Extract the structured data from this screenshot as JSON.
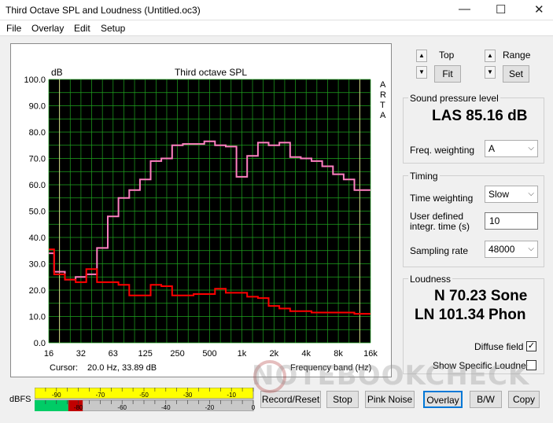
{
  "window": {
    "title": "Third Octave SPL and Loudness (Untitled.oc3)",
    "controls": {
      "minimize": "—",
      "maximize": "☐",
      "close": "✕"
    }
  },
  "menu": {
    "file": "File",
    "overlay": "Overlay",
    "edit": "Edit",
    "setup": "Setup"
  },
  "plot": {
    "cursor_label": "Cursor:",
    "cursor_value": "20.0 Hz, 33.89 dB",
    "arta": [
      "A",
      "R",
      "T",
      "A"
    ]
  },
  "chart_data": {
    "type": "line",
    "title": "Third octave SPL",
    "ylabel": "dB",
    "xlabel": "Frequency band (Hz)",
    "ylim": [
      0,
      100
    ],
    "y_ticks": [
      "0.0",
      "10.0",
      "20.0",
      "30.0",
      "40.0",
      "50.0",
      "60.0",
      "70.0",
      "80.0",
      "90.0",
      "100.0"
    ],
    "x_tick_labels": [
      "16",
      "32",
      "63",
      "125",
      "250",
      "500",
      "1k",
      "2k",
      "4k",
      "8k",
      "16k"
    ],
    "x_band_index_range": [
      0,
      30
    ],
    "grid": true,
    "background": "#000000",
    "grid_color": "#1fa51f",
    "series": [
      {
        "color": "#ff80c0",
        "values": [
          34,
          27,
          24,
          25,
          26,
          36,
          48,
          55,
          58,
          62,
          69,
          70,
          75,
          75.5,
          75.5,
          76.5,
          75,
          74.5,
          63,
          71,
          76,
          75,
          76,
          70.5,
          70,
          69,
          67,
          64,
          62,
          58,
          58
        ]
      },
      {
        "color": "#ff0000",
        "values": [
          35.5,
          26,
          24,
          23,
          28,
          23,
          23,
          22,
          18,
          18,
          22,
          21.5,
          18,
          18,
          18.5,
          18.5,
          20.5,
          19,
          19,
          17.5,
          17,
          14,
          13,
          12,
          12,
          11.5,
          11.5,
          11.5,
          11.5,
          11,
          11
        ]
      }
    ]
  },
  "panel": {
    "top_label": "Top",
    "range_label": "Range",
    "fit_button": "Fit",
    "set_button": "Set",
    "up_arrow": "▲",
    "down_arrow": "▼",
    "spl": {
      "group_label": "Sound pressure level",
      "value": "LAS 85.16 dB",
      "freq_weighting_label": "Freq. weighting",
      "freq_weighting_value": "A"
    },
    "timing": {
      "group_label": "Timing",
      "time_weighting_label": "Time weighting",
      "time_weighting_value": "Slow",
      "integr_label_1": "User defined",
      "integr_label_2": "integr. time (s)",
      "integr_value": "10",
      "sampling_label": "Sampling rate",
      "sampling_value": "48000"
    },
    "loudness": {
      "group_label": "Loudness",
      "sone": "N 70.23 Sone",
      "phon": "LN 101.34 Phon",
      "diffuse_label": "Diffuse field",
      "diffuse_checked": "✓",
      "specific_label": "Show Specific Loudness"
    }
  },
  "meter": {
    "label": "dBFS",
    "scale_top": [
      "-90",
      "-70",
      "-50",
      "-30",
      "-10"
    ],
    "scale_bottom": [
      "-80",
      "-60",
      "-40",
      "-20",
      "0"
    ],
    "level_fraction": 0.22,
    "colors": {
      "top": "#ffff00",
      "green": "#00cc66",
      "red": "#c00000"
    }
  },
  "buttons": {
    "record_reset": "Record/Reset",
    "stop": "Stop",
    "pink_noise": "Pink Noise",
    "overlay": "Overlay",
    "bw": "B/W",
    "copy": "Copy"
  },
  "watermark": "NOTEBOOKCHECK"
}
